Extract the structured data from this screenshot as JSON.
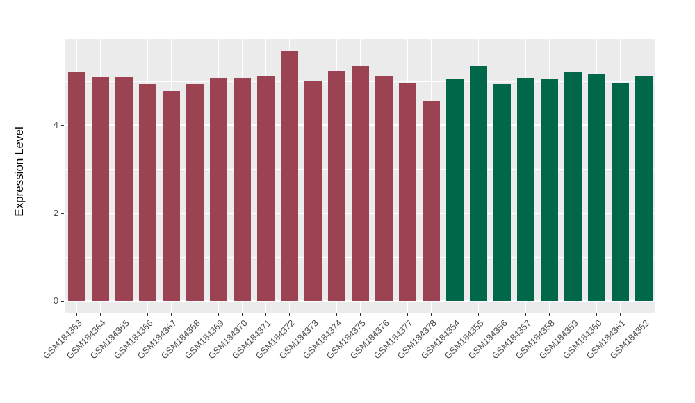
{
  "chart_data": {
    "type": "bar",
    "title": "",
    "xlabel": "",
    "ylabel": "Expression Level",
    "ylim": [
      0,
      5.95
    ],
    "yticks": [
      0,
      2,
      4
    ],
    "minor_yticks": [
      1,
      3,
      5
    ],
    "legend_position": "none",
    "panel_background": "#EBEBEB",
    "gridline_color": "#FFFFFF",
    "group_colors": {
      "group1": "#9C4353",
      "group2": "#006748"
    },
    "bars": [
      {
        "label": "GSM184363",
        "value": 5.21,
        "group": "group1"
      },
      {
        "label": "GSM184364",
        "value": 5.09,
        "group": "group1"
      },
      {
        "label": "GSM184365",
        "value": 5.09,
        "group": "group1"
      },
      {
        "label": "GSM184366",
        "value": 4.94,
        "group": "group1"
      },
      {
        "label": "GSM184367",
        "value": 4.77,
        "group": "group1"
      },
      {
        "label": "GSM184368",
        "value": 4.93,
        "group": "group1"
      },
      {
        "label": "GSM184369",
        "value": 5.08,
        "group": "group1"
      },
      {
        "label": "GSM184370",
        "value": 5.08,
        "group": "group1"
      },
      {
        "label": "GSM184371",
        "value": 5.11,
        "group": "group1"
      },
      {
        "label": "GSM184372",
        "value": 5.67,
        "group": "group1"
      },
      {
        "label": "GSM184373",
        "value": 4.99,
        "group": "group1"
      },
      {
        "label": "GSM184374",
        "value": 5.23,
        "group": "group1"
      },
      {
        "label": "GSM184375",
        "value": 5.35,
        "group": "group1"
      },
      {
        "label": "GSM184376",
        "value": 5.13,
        "group": "group1"
      },
      {
        "label": "GSM184377",
        "value": 4.96,
        "group": "group1"
      },
      {
        "label": "GSM184378",
        "value": 4.56,
        "group": "group1"
      },
      {
        "label": "GSM184354",
        "value": 5.04,
        "group": "group2"
      },
      {
        "label": "GSM184355",
        "value": 5.35,
        "group": "group2"
      },
      {
        "label": "GSM184356",
        "value": 4.94,
        "group": "group2"
      },
      {
        "label": "GSM184357",
        "value": 5.08,
        "group": "group2"
      },
      {
        "label": "GSM184358",
        "value": 5.06,
        "group": "group2"
      },
      {
        "label": "GSM184359",
        "value": 5.22,
        "group": "group2"
      },
      {
        "label": "GSM184360",
        "value": 5.15,
        "group": "group2"
      },
      {
        "label": "GSM184361",
        "value": 4.97,
        "group": "group2"
      },
      {
        "label": "GSM184362",
        "value": 5.1,
        "group": "group2"
      }
    ]
  }
}
